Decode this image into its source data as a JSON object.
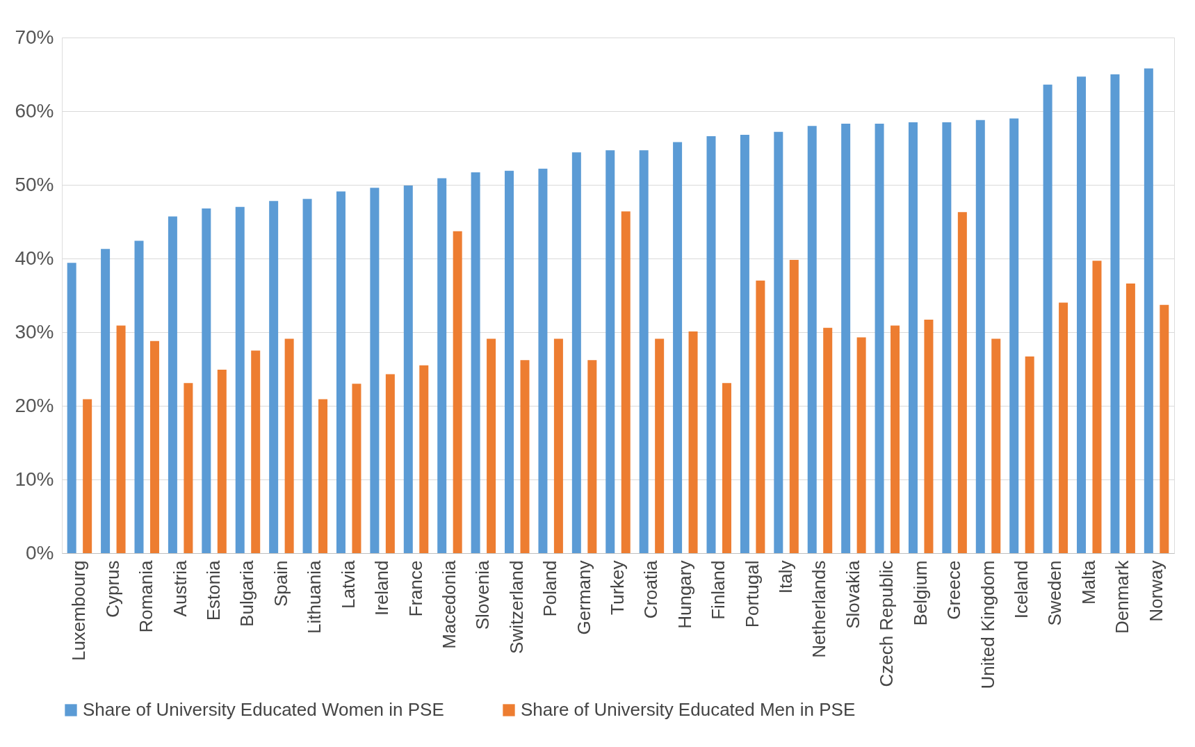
{
  "chart_data": {
    "type": "bar",
    "categories": [
      "Luxembourg",
      "Cyprus",
      "Romania",
      "Austria",
      "Estonia",
      "Bulgaria",
      "Spain",
      "Lithuania",
      "Latvia",
      "Ireland",
      "France",
      "Macedonia",
      "Slovenia",
      "Switzerland",
      "Poland",
      "Germany",
      "Turkey",
      "Croatia",
      "Hungary",
      "Finland",
      "Portugal",
      "Italy",
      "Netherlands",
      "Slovakia",
      "Czech Republic",
      "Belgium",
      "Greece",
      "United Kingdom",
      "Iceland",
      "Sweden",
      "Malta",
      "Denmark",
      "Norway"
    ],
    "series": [
      {
        "name": "Share of University Educated Women in PSE",
        "color": "#5b9bd5",
        "values": [
          39.4,
          41.3,
          42.4,
          45.7,
          46.8,
          47.0,
          47.8,
          48.1,
          49.1,
          49.6,
          49.9,
          50.9,
          51.7,
          51.9,
          52.2,
          54.4,
          54.7,
          54.7,
          55.8,
          56.6,
          56.8,
          57.2,
          58.0,
          58.3,
          58.3,
          58.5,
          58.5,
          58.8,
          59.0,
          63.6,
          64.7,
          65.0,
          65.8
        ]
      },
      {
        "name": "Share of University Educated Men in PSE",
        "color": "#ed7d31",
        "values": [
          20.9,
          30.9,
          28.8,
          23.1,
          24.9,
          27.5,
          29.1,
          20.9,
          23.0,
          24.3,
          25.5,
          43.7,
          29.1,
          26.2,
          29.1,
          26.2,
          46.4,
          29.1,
          30.1,
          23.1,
          37.0,
          39.8,
          30.6,
          29.3,
          30.9,
          31.7,
          46.3,
          29.1,
          26.7,
          34.0,
          39.7,
          36.6,
          33.7
        ]
      }
    ],
    "ylim": [
      0,
      70
    ],
    "yticks": [
      {
        "value": 0,
        "label": "0%"
      },
      {
        "value": 10,
        "label": "10%"
      },
      {
        "value": 20,
        "label": "20%"
      },
      {
        "value": 30,
        "label": "30%"
      },
      {
        "value": 40,
        "label": "40%"
      },
      {
        "value": 50,
        "label": "50%"
      },
      {
        "value": 60,
        "label": "60%"
      },
      {
        "value": 70,
        "label": "70%"
      }
    ],
    "grid": "y",
    "legend": "bottom"
  }
}
